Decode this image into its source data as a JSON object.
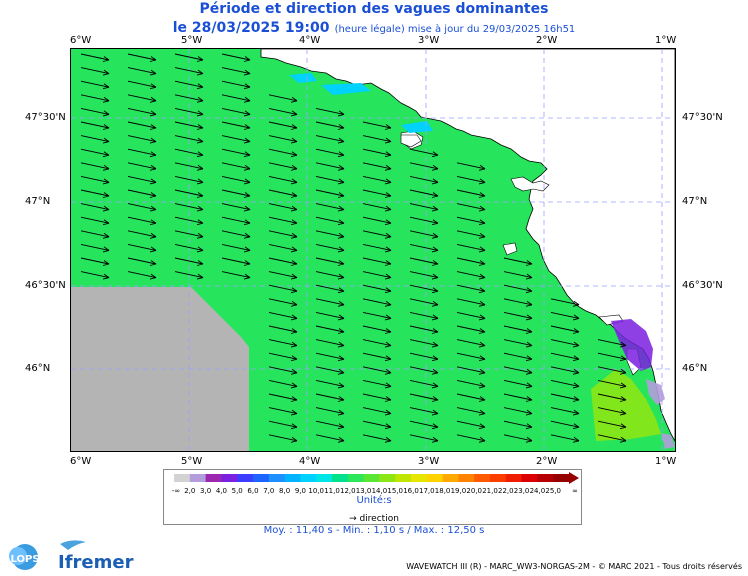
{
  "title": "Période et direction des vagues dominantes",
  "subtitle_date": "le 28/03/2025 19:00",
  "subtitle_note": "(heure légale) mise à jour du 29/03/2025 16h51",
  "lon_ticks": [
    "6°W",
    "5°W",
    "4°W",
    "3°W",
    "2°W",
    "1°W"
  ],
  "lat_ticks": [
    "47°30'N",
    "47°N",
    "46°30'N",
    "46°N"
  ],
  "legend": {
    "values": [
      "2,0",
      "3,0",
      "4,0",
      "5,0",
      "6,0",
      "7,0",
      "8,0",
      "9,0",
      "10,0",
      "11,0",
      "12,0",
      "13,0",
      "14,0",
      "15,0",
      "16,0",
      "17,0",
      "18,0",
      "19,0",
      "20,0",
      "21,0",
      "22,0",
      "23,0",
      "24,0",
      "25,0"
    ],
    "min_symbol": "-∞",
    "max_symbol": "∞",
    "colors": [
      "#d3d3d3",
      "#b39ddb",
      "#9c27b0",
      "#7b1fe0",
      "#3d3dff",
      "#1e64ff",
      "#1e90ff",
      "#00b4ff",
      "#00d2ff",
      "#00e5e5",
      "#00e28c",
      "#2de65a",
      "#5ae632",
      "#8ce614",
      "#bee600",
      "#e6e600",
      "#ffd200",
      "#ffaa00",
      "#ff8200",
      "#ff5a00",
      "#ff3c00",
      "#f01e00",
      "#dc0000",
      "#b40000",
      "#960000"
    ],
    "unit_label": "Unité:s",
    "direction_label": "direction"
  },
  "stats_text": "Moy. : 11,40 s   -   Min. : 1,10 s / Max. : 12,50 s",
  "credits": "WAVEWATCH III (R) - MARC_WW3-NORGAS-2M - © MARC 2021 - Tous droits réservés",
  "logos": {
    "lops": "LOPS",
    "ifremer": "Ifremer"
  },
  "map": {
    "sea_color": "#26e45c",
    "land_color": "#ffffff",
    "nodata_color": "#b4b4b4",
    "arrow_color": "#000000"
  }
}
